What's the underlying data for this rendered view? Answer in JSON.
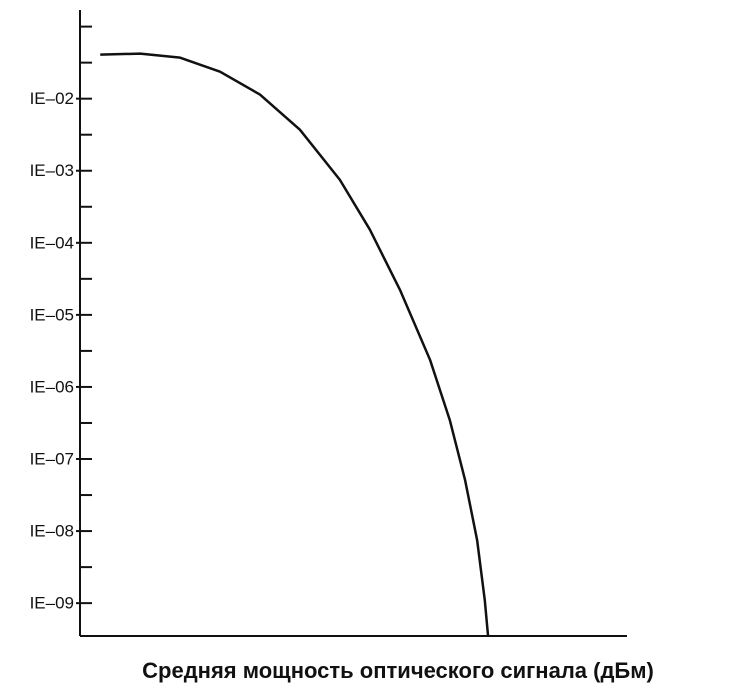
{
  "chart_data": {
    "type": "line",
    "x_label": "Средняя мощность оптического сигнала (дБм)",
    "log_y": true,
    "xlim": [
      0,
      100
    ],
    "ylim": [
      3.5e-10,
      0.17
    ],
    "yticks": [
      {
        "value": 0.01,
        "label": "IE–02"
      },
      {
        "value": 0.001,
        "label": "IE–03"
      },
      {
        "value": 0.0001,
        "label": "IE–04"
      },
      {
        "value": 1e-05,
        "label": "IE–05"
      },
      {
        "value": 1e-06,
        "label": "IE–06"
      },
      {
        "value": 1e-07,
        "label": "IE–07"
      },
      {
        "value": 1e-08,
        "label": "IE–08"
      },
      {
        "value": 1e-09,
        "label": "IE–09"
      }
    ],
    "yminorticks": [
      0.1,
      0.03162,
      0.003162,
      0.0003162,
      3.162e-05,
      3.162e-06,
      3.162e-07,
      3.162e-08,
      3.162e-09
    ],
    "series": [
      {
        "color": "#111111",
        "x": [
          3.7,
          11.0,
          18.3,
          25.6,
          32.9,
          40.2,
          47.5,
          53.0,
          58.5,
          64.0,
          67.6,
          70.4,
          72.6,
          74.0,
          74.6
        ],
        "values": [
          0.0408,
          0.0422,
          0.0371,
          0.0237,
          0.0114,
          0.00371,
          0.00075,
          0.000152,
          2.22e-05,
          2.37e-06,
          3.48e-07,
          5.1e-08,
          7.5e-09,
          1.1e-09,
          3.5e-10
        ]
      }
    ]
  }
}
